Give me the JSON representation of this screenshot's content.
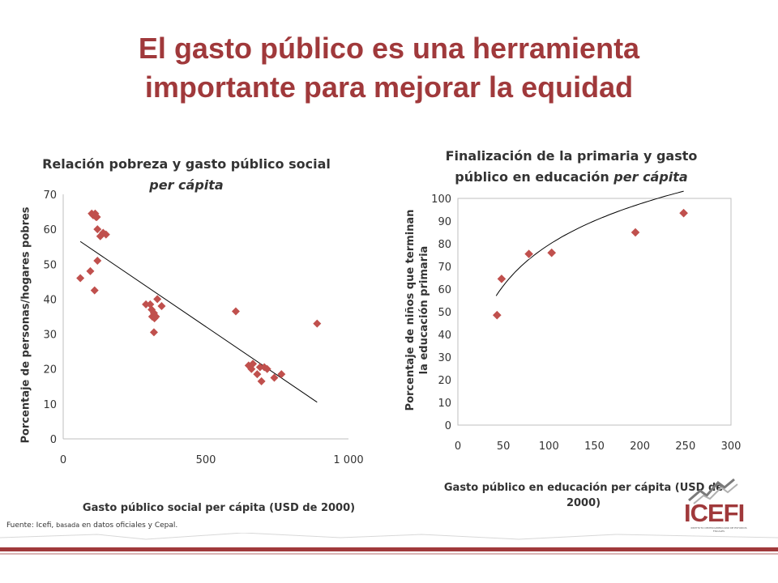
{
  "page": {
    "title_line1": "El gasto público es una herramienta",
    "title_line2": "importante para mejorar la equidad",
    "source_prefix": "Fuente: Icefi, ",
    "source_small": "basada",
    "source_suffix": " en datos oficiales  y Cepal.",
    "logo_text": "ICEFI",
    "logo_subtext": "INSTITUTO CENTROAMERICANO DE ESTUDIOS FISCALES",
    "accent_color": "#a0393b",
    "marker_color": "#c0504d"
  },
  "chart_data": [
    {
      "type": "scatter",
      "title_main": "Relación pobreza y gasto público social",
      "title_italic": "per cápita",
      "xlabel": "Gasto público social per cápita (USD  de 2000)",
      "ylabel": "Porcentaje de personas/hogares pobres",
      "xlim": [
        0,
        1000
      ],
      "ylim": [
        0,
        70
      ],
      "xticks": [
        0,
        500,
        1000
      ],
      "xtick_labels": [
        "0",
        "500",
        "1 000"
      ],
      "yticks": [
        0,
        10,
        20,
        30,
        40,
        50,
        60,
        70
      ],
      "ytick_labels": [
        "0",
        "10",
        "20",
        "30",
        "40",
        "50",
        "60",
        "70"
      ],
      "trendline": {
        "type": "linear",
        "x": [
          60,
          890
        ],
        "y": [
          56.5,
          10.5
        ]
      },
      "points": [
        {
          "x": 60,
          "y": 46
        },
        {
          "x": 95,
          "y": 48
        },
        {
          "x": 100,
          "y": 64.5
        },
        {
          "x": 105,
          "y": 64
        },
        {
          "x": 110,
          "y": 42.5
        },
        {
          "x": 112,
          "y": 64.5
        },
        {
          "x": 115,
          "y": 63.5
        },
        {
          "x": 118,
          "y": 63.5
        },
        {
          "x": 120,
          "y": 60
        },
        {
          "x": 120,
          "y": 51
        },
        {
          "x": 130,
          "y": 58
        },
        {
          "x": 140,
          "y": 59
        },
        {
          "x": 150,
          "y": 58.5
        },
        {
          "x": 290,
          "y": 38.5
        },
        {
          "x": 305,
          "y": 38.5
        },
        {
          "x": 310,
          "y": 37
        },
        {
          "x": 312,
          "y": 35
        },
        {
          "x": 318,
          "y": 36
        },
        {
          "x": 320,
          "y": 34.5
        },
        {
          "x": 325,
          "y": 35
        },
        {
          "x": 318,
          "y": 30.5
        },
        {
          "x": 330,
          "y": 40
        },
        {
          "x": 345,
          "y": 38
        },
        {
          "x": 605,
          "y": 36.5
        },
        {
          "x": 650,
          "y": 21
        },
        {
          "x": 660,
          "y": 20
        },
        {
          "x": 665,
          "y": 21.5
        },
        {
          "x": 680,
          "y": 18.5
        },
        {
          "x": 690,
          "y": 20.5
        },
        {
          "x": 695,
          "y": 16.5
        },
        {
          "x": 705,
          "y": 20.5
        },
        {
          "x": 715,
          "y": 20
        },
        {
          "x": 740,
          "y": 17.5
        },
        {
          "x": 765,
          "y": 18.5
        },
        {
          "x": 890,
          "y": 33
        }
      ]
    },
    {
      "type": "scatter",
      "title_line1": "Finalización de la primaria y gasto",
      "title_line2_main": "público en educación ",
      "title_line2_italic": "per cápita",
      "xlabel": "Gasto público en educación per cápita (USD de 2000)",
      "ylabel_line1": "Porcentaje de niños que terminan",
      "ylabel_line2": "la educación primaria",
      "xlim": [
        0,
        300
      ],
      "ylim": [
        0,
        100
      ],
      "xticks": [
        0,
        50,
        100,
        150,
        200,
        250,
        300
      ],
      "xtick_labels": [
        "0",
        "50",
        "100",
        "150",
        "200",
        "250",
        "300"
      ],
      "yticks": [
        0,
        10,
        20,
        30,
        40,
        50,
        60,
        70,
        80,
        90,
        100
      ],
      "ytick_labels": [
        "0",
        "10",
        "20",
        "30",
        "40",
        "50",
        "60",
        "70",
        "80",
        "90",
        "100"
      ],
      "trendline": {
        "type": "logarithmic",
        "a": 26,
        "x0": 42,
        "y0": 57,
        "x_range": [
          42,
          248
        ]
      },
      "points": [
        {
          "x": 43,
          "y": 48.5
        },
        {
          "x": 48,
          "y": 64.5
        },
        {
          "x": 78,
          "y": 75.5
        },
        {
          "x": 103,
          "y": 76
        },
        {
          "x": 195,
          "y": 85
        },
        {
          "x": 248,
          "y": 93.5
        }
      ]
    }
  ]
}
